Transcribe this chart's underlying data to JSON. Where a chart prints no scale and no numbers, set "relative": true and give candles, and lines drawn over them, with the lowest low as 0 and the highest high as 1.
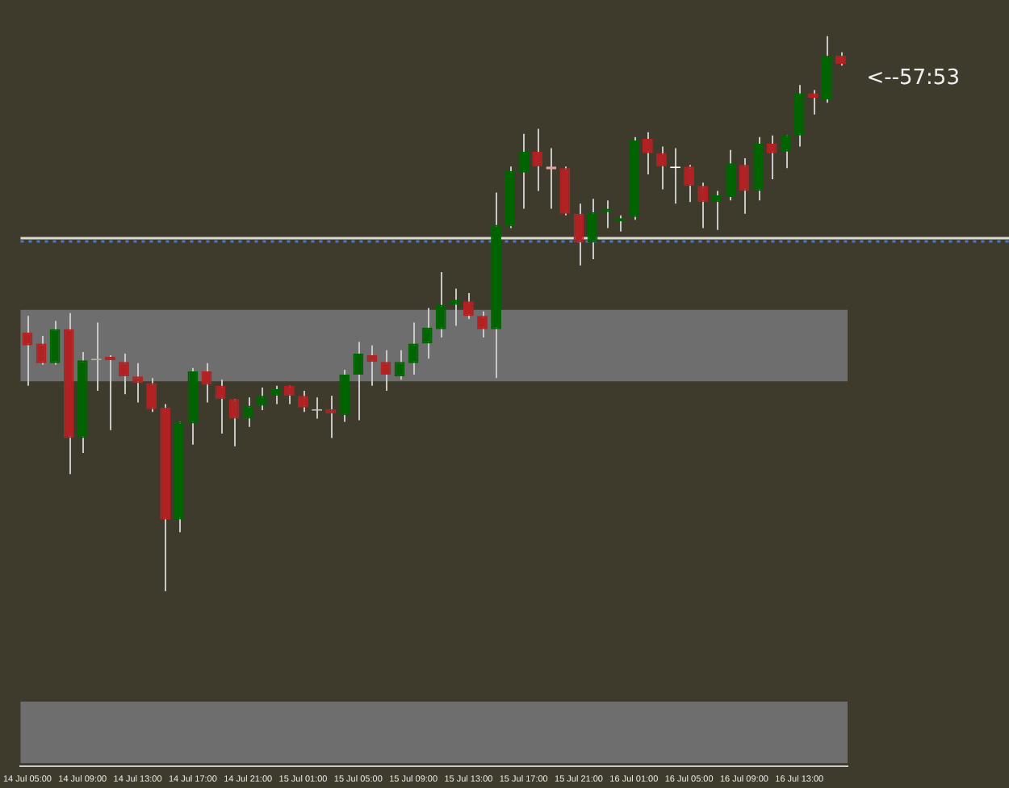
{
  "chart_data": {
    "type": "candlestick",
    "relative": true,
    "tick_labels": "x",
    "categories": [
      "14 Jul 05:00",
      null,
      null,
      null,
      "14 Jul 09:00",
      null,
      null,
      null,
      "14 Jul 13:00",
      null,
      null,
      null,
      "14 Jul 17:00",
      null,
      null,
      null,
      "14 Jul 21:00",
      null,
      null,
      null,
      "15 Jul 01:00",
      null,
      null,
      null,
      "15 Jul 05:00",
      null,
      null,
      null,
      "15 Jul 09:00",
      null,
      null,
      null,
      "15 Jul 13:00",
      null,
      null,
      null,
      "15 Jul 17:00",
      null,
      null,
      null,
      "15 Jul 21:00",
      null,
      null,
      null,
      "16 Jul 01:00",
      null,
      null,
      null,
      "16 Jul 05:00",
      null,
      null,
      null,
      "16 Jul 09:00",
      null,
      null,
      null,
      "16 Jul 13:00",
      null,
      null,
      null
    ],
    "ohlc": [
      [
        0.466,
        0.496,
        0.37,
        0.443
      ],
      [
        0.446,
        0.46,
        0.408,
        0.411
      ],
      [
        0.411,
        0.487,
        0.408,
        0.472
      ],
      [
        0.472,
        0.501,
        0.211,
        0.276
      ],
      [
        0.276,
        0.431,
        0.249,
        0.416
      ],
      [
        0.419,
        0.484,
        0.361,
        0.419
      ],
      [
        0.422,
        0.425,
        0.29,
        0.416
      ],
      [
        0.413,
        0.428,
        0.355,
        0.387
      ],
      [
        0.387,
        0.411,
        0.34,
        0.375
      ],
      [
        0.375,
        0.384,
        0.323,
        0.328
      ],
      [
        0.331,
        0.337,
        0,
        0.129
      ],
      [
        0.129,
        0.305,
        0.106,
        0.305
      ],
      [
        0.302,
        0.402,
        0.264,
        0.396
      ],
      [
        0.396,
        0.411,
        0.34,
        0.372
      ],
      [
        0.37,
        0.381,
        0.284,
        0.346
      ],
      [
        0.346,
        0.346,
        0.261,
        0.311
      ],
      [
        0.311,
        0.349,
        0.296,
        0.334
      ],
      [
        0.334,
        0.367,
        0.326,
        0.352
      ],
      [
        0.352,
        0.37,
        0.337,
        0.364
      ],
      [
        0.37,
        0.37,
        0.337,
        0.352
      ],
      [
        0.352,
        0.361,
        0.323,
        0.331
      ],
      [
        0.328,
        0.349,
        0.311,
        0.328
      ],
      [
        0.328,
        0.352,
        0.276,
        0.32
      ],
      [
        0.317,
        0.399,
        0.305,
        0.39
      ],
      [
        0.39,
        0.449,
        0.308,
        0.428
      ],
      [
        0.425,
        0.443,
        0.37,
        0.413
      ],
      [
        0.413,
        0.434,
        0.361,
        0.39
      ],
      [
        0.387,
        0.434,
        0.381,
        0.413
      ],
      [
        0.411,
        0.484,
        0.39,
        0.446
      ],
      [
        0.446,
        0.51,
        0.419,
        0.475
      ],
      [
        0.472,
        0.575,
        0.457,
        0.516
      ],
      [
        0.516,
        0.545,
        0.478,
        0.525
      ],
      [
        0.522,
        0.537,
        0.49,
        0.496
      ],
      [
        0.496,
        0.504,
        0.457,
        0.472
      ],
      [
        0.472,
        0.718,
        0.384,
        0.66
      ],
      [
        0.657,
        0.765,
        0.654,
        0.757
      ],
      [
        0.754,
        0.824,
        0.689,
        0.792
      ],
      [
        0.792,
        0.833,
        0.721,
        0.765
      ],
      [
        0.765,
        0.798,
        0.689,
        0.76
      ],
      [
        0.762,
        0.765,
        0.677,
        0.68
      ],
      [
        0.68,
        0.698,
        0.587,
        0.628
      ],
      [
        0.628,
        0.707,
        0.598,
        0.683
      ],
      [
        0.683,
        0.704,
        0.654,
        0.689
      ],
      [
        0.666,
        0.677,
        0.648,
        0.672
      ],
      [
        0.674,
        0.818,
        0.669,
        0.812
      ],
      [
        0.815,
        0.827,
        0.751,
        0.789
      ],
      [
        0.789,
        0.801,
        0.724,
        0.765
      ],
      [
        0.765,
        0.798,
        0.698,
        0.765
      ],
      [
        0.765,
        0.768,
        0.701,
        0.73
      ],
      [
        0.73,
        0.736,
        0.654,
        0.701
      ],
      [
        0.701,
        0.721,
        0.651,
        0.713
      ],
      [
        0.71,
        0.795,
        0.704,
        0.771
      ],
      [
        0.768,
        0.78,
        0.68,
        0.721
      ],
      [
        0.721,
        0.818,
        0.704,
        0.806
      ],
      [
        0.806,
        0.821,
        0.742,
        0.789
      ],
      [
        0.792,
        0.821,
        0.762,
        0.821
      ],
      [
        0.821,
        0.912,
        0.801,
        0.897
      ],
      [
        0.897,
        0.903,
        0.859,
        0.889
      ],
      [
        0.886,
        1,
        0.88,
        0.965
      ],
      [
        0.965,
        0.971,
        0.947,
        0.95
      ]
    ],
    "colors": [
      "#b22222",
      "#b22222",
      "#006400",
      "#b22222",
      "#006400",
      "#a8b8a0",
      "#b22222",
      "#b22222",
      "#b22222",
      "#b22222",
      "#b22222",
      "#006400",
      "#006400",
      "#b22222",
      "#b22222",
      "#b22222",
      "#006400",
      "#006400",
      "#006400",
      "#b22222",
      "#b22222",
      "#c0c0c0",
      "#b22222",
      "#006400",
      "#006400",
      "#b22222",
      "#b22222",
      "#006400",
      "#006400",
      "#006400",
      "#006400",
      "#006400",
      "#b22222",
      "#b22222",
      "#006400",
      "#006400",
      "#006400",
      "#b22222",
      "#e8a0a0",
      "#b22222",
      "#b22222",
      "#006400",
      "#006400",
      "#006400",
      "#006400",
      "#b22222",
      "#b22222",
      "#ffffff",
      "#b22222",
      "#b22222",
      "#006400",
      "#006400",
      "#b22222",
      "#006400",
      "#b22222",
      "#006400",
      "#006400",
      "#b22222",
      "#006400",
      "#b22222"
    ],
    "ref_lines": [
      {
        "axis": "y",
        "value": 0.636,
        "color": "#dcdcd0",
        "line_style": "solid"
      },
      {
        "axis": "y",
        "value": 0.63,
        "color": "#4a78c8",
        "line_style": "dotted"
      }
    ],
    "bands": [
      {
        "axis": "y",
        "from": 0.378,
        "to": 0.507,
        "color": "#6e6e6e"
      },
      {
        "axis": "y",
        "from": -0.31,
        "to": -0.199,
        "color": "#6e6e6e"
      }
    ],
    "annotations": [
      "<--57:53"
    ]
  }
}
